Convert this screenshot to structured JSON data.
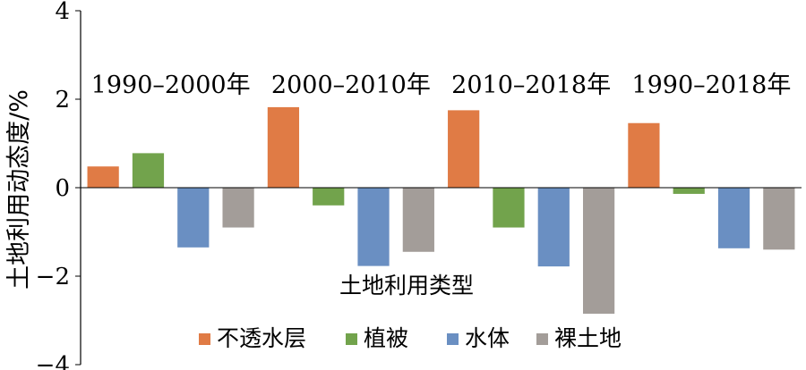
{
  "chart_data": {
    "type": "bar",
    "ylabel": "土地利用动态度/%",
    "xlabel": "土地利用类型",
    "ylim": [
      -4,
      4
    ],
    "yticks": [
      -4,
      -2,
      0,
      2,
      4
    ],
    "ytick_labels": [
      "−4",
      "−2",
      "0",
      "2",
      "4"
    ],
    "grid": false,
    "legend_position": "bottom",
    "groups": [
      "1990–2000年",
      "2000–2010年",
      "2010–2018年",
      "1990–2018年"
    ],
    "series": [
      {
        "name": "不透水层",
        "color": "#E07B45",
        "values": [
          0.48,
          1.82,
          1.75,
          1.46
        ]
      },
      {
        "name": "植被",
        "color": "#72A34C",
        "values": [
          0.78,
          -0.4,
          -0.9,
          -0.14
        ]
      },
      {
        "name": "水体",
        "color": "#6A8FC2",
        "values": [
          -1.35,
          -1.77,
          -1.78,
          -1.37
        ]
      },
      {
        "name": "裸土地",
        "color": "#A39D99",
        "values": [
          -0.9,
          -1.45,
          -2.85,
          -1.4
        ]
      }
    ]
  }
}
